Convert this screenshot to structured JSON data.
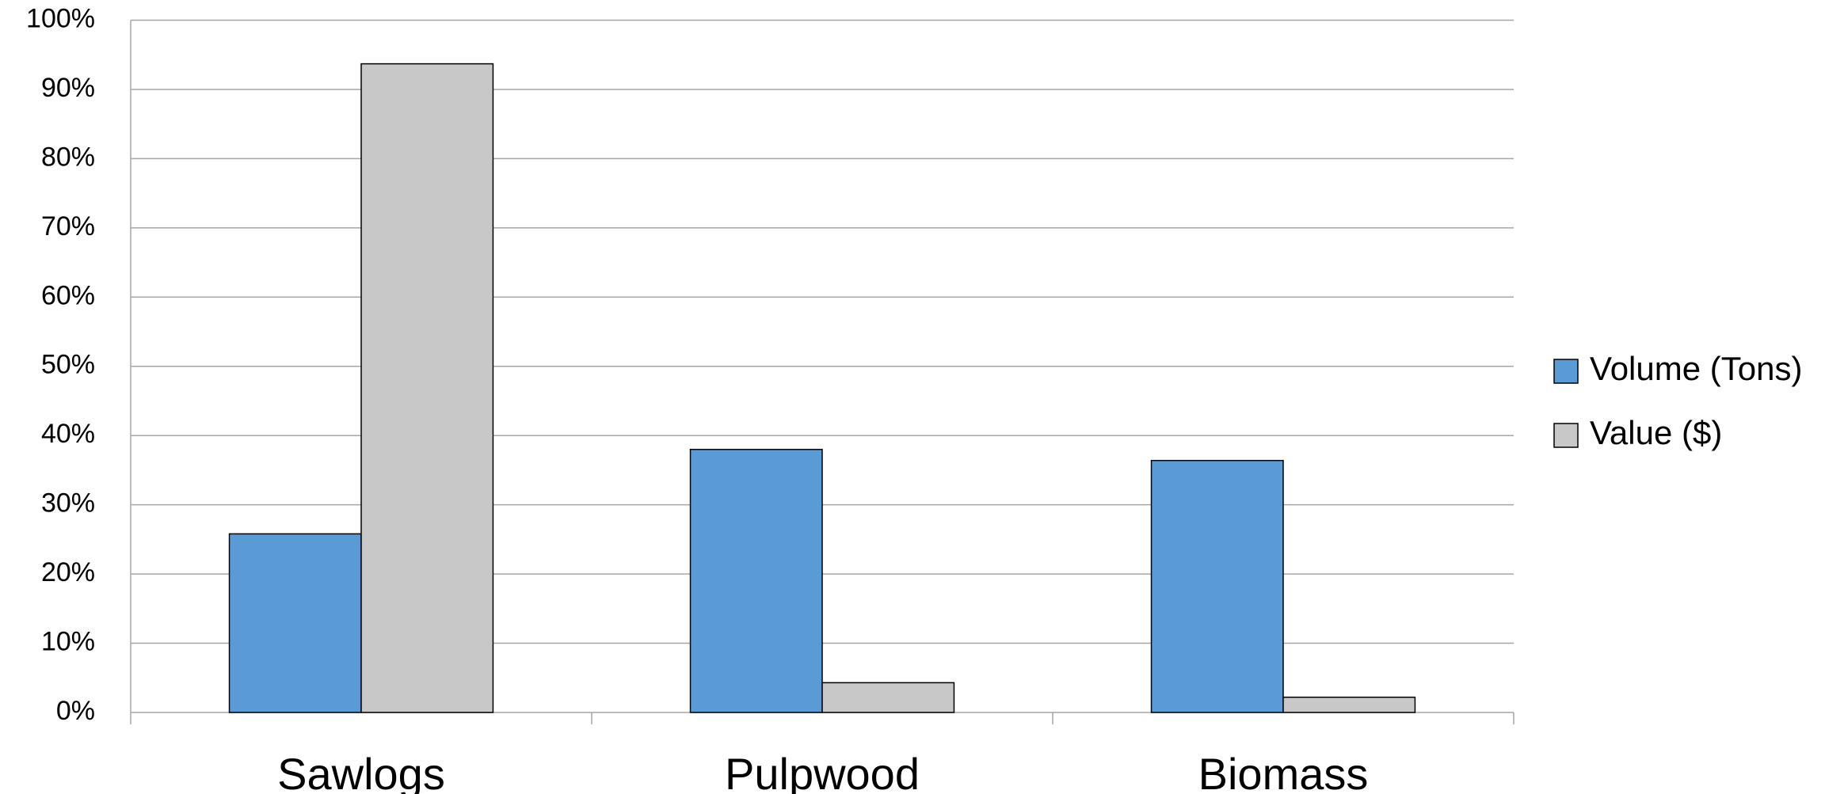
{
  "chart_data": {
    "type": "bar",
    "categories": [
      "Sawlogs",
      "Pulpwood",
      "Biomass"
    ],
    "series": [
      {
        "name": "Volume (Tons)",
        "color": "#5b9bd5",
        "values": [
          25.8,
          38.0,
          36.4
        ]
      },
      {
        "name": "Value ($)",
        "color": "#c8c8c8",
        "values": [
          93.7,
          4.3,
          2.2
        ]
      }
    ],
    "ylim": [
      0,
      100
    ],
    "yticks": [
      {
        "value": 0,
        "label": "0%"
      },
      {
        "value": 10,
        "label": "10%"
      },
      {
        "value": 20,
        "label": "20%"
      },
      {
        "value": 30,
        "label": "30%"
      },
      {
        "value": 40,
        "label": "40%"
      },
      {
        "value": 50,
        "label": "50%"
      },
      {
        "value": 60,
        "label": "60%"
      },
      {
        "value": 70,
        "label": "70%"
      },
      {
        "value": 80,
        "label": "80%"
      },
      {
        "value": 90,
        "label": "90%"
      },
      {
        "value": 100,
        "label": "100%"
      }
    ],
    "grid": true,
    "legend": "right"
  }
}
